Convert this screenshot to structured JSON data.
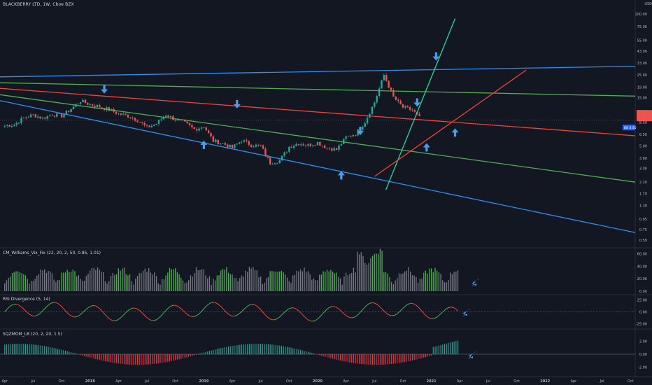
{
  "header": {
    "symbol": "BLACKBERRY LTD, 1W, Cboe BZX",
    "currency": "USD"
  },
  "price_tag": {
    "label": "BB",
    "value": "8.95"
  },
  "colors": {
    "background": "#131722",
    "up": "#26a69a",
    "down": "#ef5350",
    "blue_line": "#2a8ef5",
    "green_line": "#4caf50",
    "red_line": "#f44336",
    "teal_line": "#26d7a8",
    "arrow": "#4a9de8",
    "rsi_up": "#4caf50",
    "rsi_down": "#f44336",
    "hist_green": "#4caf50",
    "hist_gray": "#787b86",
    "sqz_green": "#26a69a",
    "sqz_red": "#f23645"
  },
  "chart_data": {
    "type": "candlestick",
    "scale": "log",
    "price_axis": [
      "100.00",
      "75.00",
      "55.00",
      "43.00",
      "33.00",
      "25.00",
      "19.00",
      "15.00",
      "11.00",
      "8.50",
      "6.50",
      "5.00",
      "3.80",
      "3.00",
      "2.20",
      "1.70",
      "1.30",
      "0.95",
      "0.75",
      "0.59"
    ],
    "price_ticks": [
      100,
      75,
      55,
      43,
      33,
      25,
      19,
      15,
      11,
      8.5,
      6.5,
      5,
      3.8,
      3,
      2.2,
      1.7,
      1.3,
      0.95,
      0.75,
      0.59
    ],
    "x_labels": [
      "Apr",
      "Jul",
      "Oct",
      "2018",
      "Apr",
      "Jul",
      "Oct",
      "2019",
      "Apr",
      "Jul",
      "Oct",
      "2020",
      "Apr",
      "Jul",
      "Oct",
      "2021",
      "Apr",
      "Jul",
      "Oct",
      "2022",
      "Apr",
      "Jul",
      "Oct"
    ],
    "x_months": [
      0,
      3,
      6,
      9,
      12,
      15,
      18,
      21,
      24,
      27,
      30,
      33,
      36,
      39,
      42,
      45,
      48,
      51,
      54,
      57,
      60,
      63,
      66
    ],
    "month_domain": [
      -0.5,
      66.5
    ],
    "closes_monthly": [
      7.9,
      8.1,
      9.5,
      10.1,
      9.4,
      10.2,
      9.9,
      11.6,
      13.9,
      12.8,
      12.2,
      11.4,
      10.4,
      9.9,
      9.0,
      7.6,
      8.3,
      10.2,
      9.1,
      8.4,
      7.3,
      7.8,
      5.6,
      5.3,
      4.8,
      5.7,
      5.1,
      5.0,
      3.4,
      3.6,
      4.9,
      5.3,
      5.1,
      5.4,
      4.8,
      4.6,
      6.1,
      6.6,
      8.6,
      13.5,
      25.0,
      15.1,
      12.0,
      11.3,
      9.0
    ],
    "closes_start_month": 0,
    "trend_lines": [
      {
        "name": "",
        "color": "blue",
        "from": [
          -0.5,
          24.0
        ],
        "to": [
          66.5,
          30.5
        ]
      },
      {
        "name": "",
        "color": "green",
        "from": [
          -0.5,
          21.0
        ],
        "to": [
          66.5,
          15.5
        ]
      },
      {
        "name": "",
        "color": "red",
        "from": [
          -0.5,
          18.5
        ],
        "to": [
          66.5,
          6.3
        ]
      },
      {
        "name": "",
        "color": "green",
        "from": [
          -0.5,
          16.0
        ],
        "to": [
          66.5,
          2.2
        ]
      },
      {
        "name": "",
        "color": "blue",
        "from": [
          -0.5,
          14.0
        ],
        "to": [
          66.5,
          0.7
        ]
      },
      {
        "name": "",
        "color": "teal",
        "from": [
          40.2,
          1.85
        ],
        "to": [
          47.5,
          90
        ]
      },
      {
        "name": "",
        "color": "red",
        "from": [
          39.0,
          2.5
        ],
        "to": [
          55.0,
          28.0
        ]
      }
    ],
    "arrows": [
      {
        "dir": "down",
        "month": 10.5,
        "price": 17.5
      },
      {
        "dir": "down",
        "month": 24.5,
        "price": 12.5
      },
      {
        "dir": "up",
        "month": 21.0,
        "price": 5.3
      },
      {
        "dir": "up",
        "month": 35.5,
        "price": 2.65
      },
      {
        "dir": "down",
        "month": 37.5,
        "price": 6.8
      },
      {
        "dir": "down",
        "month": 43.5,
        "price": 13.0
      },
      {
        "dir": "up",
        "month": 44.5,
        "price": 5.0
      },
      {
        "dir": "down",
        "month": 45.5,
        "price": 37.0
      },
      {
        "dir": "up",
        "month": 47.5,
        "price": 7.0
      }
    ],
    "panes": [
      {
        "title": "CM_Williams_Vix_Fix (22, 20, 2, 50, 0.85, 1.01)",
        "ticks": [
          "60.00",
          "40.00",
          "20.00",
          "0.00"
        ],
        "tick_values": [
          60,
          40,
          20,
          0
        ],
        "range": [
          0,
          65
        ],
        "type": "histogram"
      },
      {
        "title": "RSI Divergence (5, 14)",
        "ticks": [
          "25.00",
          "0.00",
          "-25.00"
        ],
        "tick_values": [
          25,
          0,
          -25
        ],
        "range": [
          -30,
          30
        ],
        "type": "line"
      },
      {
        "title": "SQZMOM_LB (20, 2, 20, 1.5)",
        "ticks": [
          "2.00",
          "0.00",
          "-2.00"
        ],
        "tick_values": [
          2,
          0,
          -2
        ],
        "range": [
          -3,
          3
        ],
        "type": "histogram"
      }
    ]
  }
}
